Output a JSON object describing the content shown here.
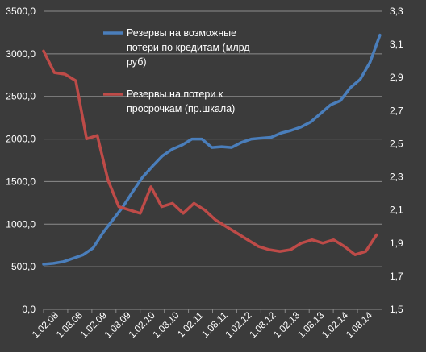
{
  "chart_data": {
    "type": "line",
    "title": "",
    "xlabel": "",
    "ylabel": "",
    "ylim": [
      0,
      3500
    ],
    "y2lim": [
      1.5,
      3.3
    ],
    "grid": true,
    "legend_position": "top-left",
    "left_ticks": [
      "0,0",
      "500,0",
      "1000,0",
      "1500,0",
      "2000,0",
      "2500,0",
      "3000,0",
      "3500,0"
    ],
    "right_ticks": [
      "1,5",
      "1,7",
      "1,9",
      "2,1",
      "2,3",
      "2,5",
      "2,7",
      "2,9",
      "3,1",
      "3,3"
    ],
    "x_ticks": [
      "1.02.08",
      "1.08.08",
      "1.02.09",
      "1.08.09",
      "1.02.10",
      "1.08.10",
      "1.02.11",
      "1.08.11",
      "1.02.12",
      "1.08.12",
      "1.02.13",
      "1.08.13",
      "1.02.14",
      "1.08.14"
    ],
    "series": [
      {
        "name": "Резервы на возможные потери по кредитам (млрд руб)",
        "axis": "left",
        "color": "#4a7ebb",
        "points": [
          [
            0,
            530
          ],
          [
            1,
            540
          ],
          [
            2,
            560
          ],
          [
            3,
            600
          ],
          [
            4,
            640
          ],
          [
            5,
            720
          ],
          [
            6,
            900
          ],
          [
            7,
            1050
          ],
          [
            8,
            1200
          ],
          [
            9,
            1380
          ],
          [
            10,
            1550
          ],
          [
            11,
            1680
          ],
          [
            12,
            1800
          ],
          [
            13,
            1880
          ],
          [
            14,
            1930
          ],
          [
            15,
            2000
          ],
          [
            16,
            2000
          ],
          [
            17,
            1900
          ],
          [
            18,
            1910
          ],
          [
            19,
            1900
          ],
          [
            20,
            1960
          ],
          [
            21,
            2000
          ],
          [
            22,
            2010
          ],
          [
            23,
            2020
          ],
          [
            24,
            2070
          ],
          [
            25,
            2100
          ],
          [
            26,
            2140
          ],
          [
            27,
            2200
          ],
          [
            28,
            2300
          ],
          [
            29,
            2400
          ],
          [
            30,
            2450
          ],
          [
            31,
            2600
          ],
          [
            32,
            2700
          ],
          [
            33,
            2900
          ],
          [
            34,
            3220
          ]
        ]
      },
      {
        "name": "Резервы на потери к просрочкам (пр.шкала)",
        "axis": "right",
        "color": "#be4b48",
        "points": [
          [
            0,
            3.06
          ],
          [
            1,
            2.93
          ],
          [
            2,
            2.92
          ],
          [
            3,
            2.88
          ],
          [
            4,
            2.53
          ],
          [
            5,
            2.55
          ],
          [
            6,
            2.28
          ],
          [
            7,
            2.12
          ],
          [
            8,
            2.1
          ],
          [
            9,
            2.08
          ],
          [
            10,
            2.24
          ],
          [
            11,
            2.12
          ],
          [
            12,
            2.14
          ],
          [
            13,
            2.08
          ],
          [
            14,
            2.14
          ],
          [
            15,
            2.1
          ],
          [
            16,
            2.04
          ],
          [
            17,
            2.0
          ],
          [
            18,
            1.96
          ],
          [
            19,
            1.92
          ],
          [
            20,
            1.88
          ],
          [
            21,
            1.86
          ],
          [
            22,
            1.85
          ],
          [
            23,
            1.86
          ],
          [
            24,
            1.9
          ],
          [
            25,
            1.92
          ],
          [
            26,
            1.9
          ],
          [
            27,
            1.92
          ],
          [
            28,
            1.88
          ],
          [
            29,
            1.83
          ],
          [
            30,
            1.85
          ],
          [
            31,
            1.95
          ]
        ]
      }
    ]
  }
}
